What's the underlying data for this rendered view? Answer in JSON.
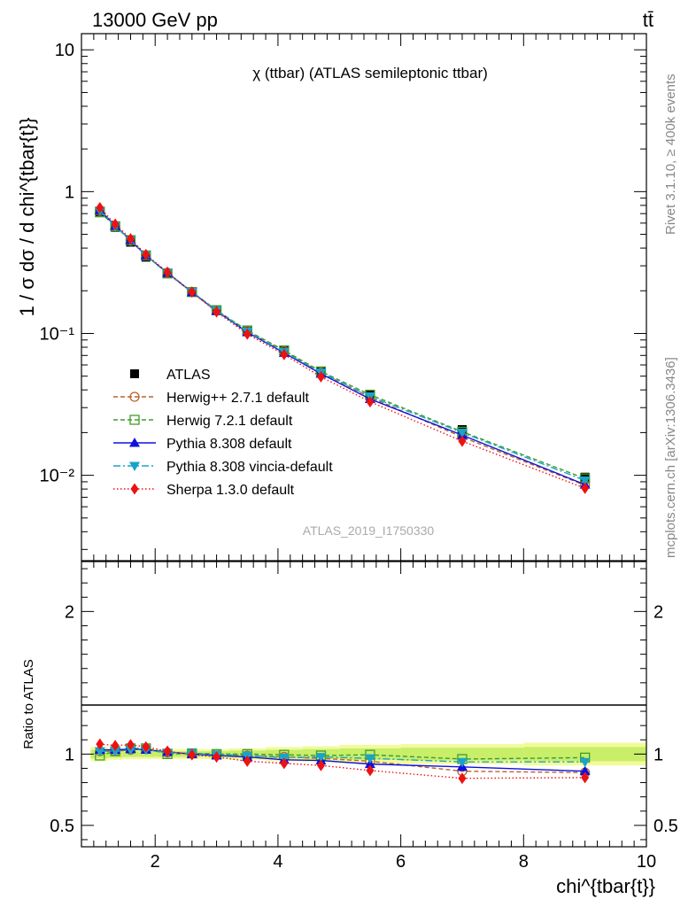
{
  "header": {
    "left": "13000 GeV pp",
    "right": "tt̄"
  },
  "side_labels": {
    "rivet": "Rivet 3.1.10, ≥ 400k events",
    "mcplots": "mcplots.cern.ch [arXiv:1306.3436]"
  },
  "watermark": "ATLAS_2019_I1750330",
  "colors": {
    "ATLAS": "#000000",
    "Herwig++": "#b8642e",
    "Herwig7": "#3f9d2a",
    "Pythia": "#1010dd",
    "Vincia": "#1aa3c9",
    "Sherpa": "#ee1111",
    "band_inner": "#c8ee6a",
    "band_outer": "#f2fb9c"
  },
  "chart_data": [
    {
      "type": "line",
      "panel": "main",
      "title": "χ (ttbar) (ATLAS semileptonic ttbar)",
      "ylabel": "1 / σ dσ / d chi^{tbar{t}}",
      "yscale": "log",
      "ylim": [
        0.0025,
        13
      ],
      "xlim": [
        0.8,
        10.0
      ],
      "yticks": [
        {
          "v": 0.01,
          "label": "10⁻²"
        },
        {
          "v": 0.1,
          "label": "10⁻¹"
        },
        {
          "v": 1,
          "label": "1"
        },
        {
          "v": 10,
          "label": "10"
        }
      ],
      "x": [
        1.1,
        1.35,
        1.6,
        1.85,
        2.2,
        2.6,
        3.0,
        3.5,
        4.1,
        4.7,
        5.5,
        7.0,
        9.0
      ],
      "series": [
        {
          "key": "ATLAS",
          "name": "ATLAS",
          "marker": "square",
          "line": "none",
          "values": [
            0.72,
            0.56,
            0.44,
            0.345,
            0.265,
            0.195,
            0.145,
            0.104,
            0.076,
            0.054,
            0.037,
            0.021,
            0.0097
          ]
        },
        {
          "key": "Herwig++",
          "name": "Herwig++ 2.7.1 default",
          "marker": "circle-open",
          "line": "dashed",
          "values": [
            0.73,
            0.57,
            0.45,
            0.355,
            0.268,
            0.196,
            0.146,
            0.104,
            0.075,
            0.053,
            0.0355,
            0.0186,
            0.0085
          ]
        },
        {
          "key": "Herwig7",
          "name": "Herwig 7.2.1 default",
          "marker": "square-open",
          "line": "dashed",
          "values": [
            0.715,
            0.57,
            0.455,
            0.355,
            0.265,
            0.196,
            0.146,
            0.105,
            0.076,
            0.054,
            0.037,
            0.0203,
            0.0095
          ]
        },
        {
          "key": "Pythia",
          "name": "Pythia 8.308 default",
          "marker": "triangle-up",
          "line": "solid",
          "values": [
            0.74,
            0.575,
            0.455,
            0.355,
            0.268,
            0.195,
            0.144,
            0.102,
            0.073,
            0.052,
            0.0345,
            0.0192,
            0.0086
          ]
        },
        {
          "key": "Vincia",
          "name": "Pythia 8.308 vincia-default",
          "marker": "triangle-down",
          "line": "dashdot",
          "values": [
            0.735,
            0.57,
            0.455,
            0.355,
            0.268,
            0.196,
            0.145,
            0.103,
            0.074,
            0.053,
            0.036,
            0.02,
            0.0092
          ]
        },
        {
          "key": "Sherpa",
          "name": "Sherpa 1.3.0 default",
          "marker": "diamond",
          "line": "dotted",
          "values": [
            0.77,
            0.59,
            0.465,
            0.36,
            0.27,
            0.196,
            0.142,
            0.099,
            0.071,
            0.0495,
            0.033,
            0.0174,
            0.0081
          ]
        }
      ]
    },
    {
      "type": "line",
      "panel": "ratio",
      "ylabel": "Ratio to ATLAS",
      "xlabel": "chi^{tbar{t}}",
      "ylim": [
        0.35,
        2.35
      ],
      "xlim": [
        0.8,
        10.0
      ],
      "xticks": [
        2,
        4,
        6,
        8,
        10
      ],
      "yticks": [
        {
          "v": 0.5,
          "label": "0.5"
        },
        {
          "v": 1,
          "label": "1"
        },
        {
          "v": 2,
          "label": "2"
        }
      ],
      "x": [
        1.1,
        1.35,
        1.6,
        1.85,
        2.2,
        2.6,
        3.0,
        3.5,
        4.1,
        4.7,
        5.5,
        7.0,
        9.0
      ],
      "band": {
        "edges": [
          0.95,
          1.225,
          1.475,
          1.725,
          2.0,
          2.4,
          2.8,
          3.2,
          3.8,
          4.4,
          5.0,
          6.0,
          8.0,
          10.0
        ],
        "inner": [
          0.03,
          0.025,
          0.02,
          0.02,
          0.02,
          0.02,
          0.02,
          0.025,
          0.03,
          0.035,
          0.04,
          0.045,
          0.05
        ],
        "outer": [
          0.05,
          0.04,
          0.035,
          0.035,
          0.035,
          0.035,
          0.035,
          0.04,
          0.05,
          0.055,
          0.065,
          0.07,
          0.08
        ]
      },
      "series": [
        {
          "key": "Herwig++",
          "name": "Herwig++ 2.7.1 default",
          "marker": "circle-open",
          "line": "dashed",
          "values": [
            1.02,
            1.02,
            1.03,
            1.04,
            1.01,
            1.005,
            1.0,
            0.99,
            0.98,
            0.97,
            0.95,
            0.88,
            0.87
          ]
        },
        {
          "key": "Herwig7",
          "name": "Herwig 7.2.1 default",
          "marker": "square-open",
          "line": "dashed",
          "values": [
            0.99,
            1.02,
            1.04,
            1.04,
            1.0,
            1.005,
            1.0,
            1.0,
            0.995,
            0.99,
            0.995,
            0.965,
            0.975
          ]
        },
        {
          "key": "Pythia",
          "name": "Pythia 8.308 default",
          "marker": "triangle-up",
          "line": "solid",
          "values": [
            1.03,
            1.03,
            1.035,
            1.03,
            1.015,
            1.0,
            0.99,
            0.98,
            0.96,
            0.955,
            0.93,
            0.91,
            0.88
          ]
        },
        {
          "key": "Vincia",
          "name": "Pythia 8.308 vincia-default",
          "marker": "triangle-down",
          "line": "dashdot",
          "values": [
            1.02,
            1.02,
            1.03,
            1.03,
            1.01,
            1.005,
            0.995,
            0.99,
            0.975,
            0.98,
            0.97,
            0.945,
            0.945
          ]
        },
        {
          "key": "Sherpa",
          "name": "Sherpa 1.3.0 default",
          "marker": "diamond",
          "line": "dotted",
          "values": [
            1.07,
            1.06,
            1.065,
            1.05,
            1.02,
            0.995,
            0.98,
            0.95,
            0.935,
            0.92,
            0.885,
            0.83,
            0.835
          ]
        }
      ]
    }
  ]
}
